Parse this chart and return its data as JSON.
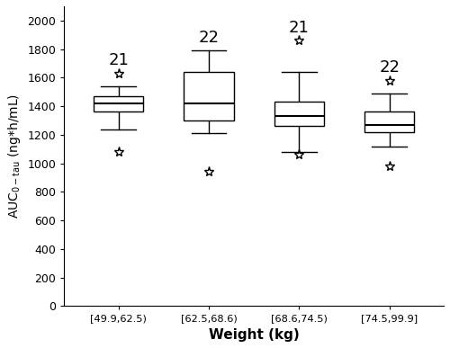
{
  "categories": [
    "[49.9,62.5)",
    "[62.5,68.6)",
    "[68.6,74.5)",
    "[74.5,99.9]"
  ],
  "n_labels": [
    "21",
    "22",
    "21",
    "22"
  ],
  "boxes": [
    {
      "q1": 1360,
      "median": 1420,
      "q3": 1470,
      "whisker_low": 1240,
      "whisker_high": 1540,
      "outliers_low": [
        1080
      ],
      "outliers_high": [
        1630
      ]
    },
    {
      "q1": 1300,
      "median": 1420,
      "q3": 1640,
      "whisker_low": 1210,
      "whisker_high": 1790,
      "outliers_low": [
        940
      ],
      "outliers_high": []
    },
    {
      "q1": 1260,
      "median": 1330,
      "q3": 1430,
      "whisker_low": 1080,
      "whisker_high": 1640,
      "outliers_low": [
        1060
      ],
      "outliers_high": [
        1860
      ]
    },
    {
      "q1": 1220,
      "median": 1270,
      "q3": 1360,
      "whisker_low": 1120,
      "whisker_high": 1490,
      "outliers_low": [
        980
      ],
      "outliers_high": [
        1580
      ]
    }
  ],
  "ylim": [
    0,
    2100
  ],
  "yticks": [
    0,
    200,
    400,
    600,
    800,
    1000,
    1200,
    1400,
    1600,
    1800,
    2000
  ],
  "ylabel": "AUC$_\\mathregular{0-tau}$ (ng*h/mL)",
  "xlabel": "Weight (kg)",
  "box_color": "white",
  "box_edge_color": "black",
  "whisker_color": "black",
  "median_color": "black",
  "outlier_marker": "*",
  "outlier_color": "black",
  "outlier_size": 8,
  "box_width": 0.55,
  "linewidth": 1.0,
  "figsize": [
    5.0,
    3.87
  ],
  "dpi": 100,
  "background_color": "white",
  "n_label_fontsize": 13,
  "axis_label_fontsize": 10,
  "tick_fontsize": 9
}
